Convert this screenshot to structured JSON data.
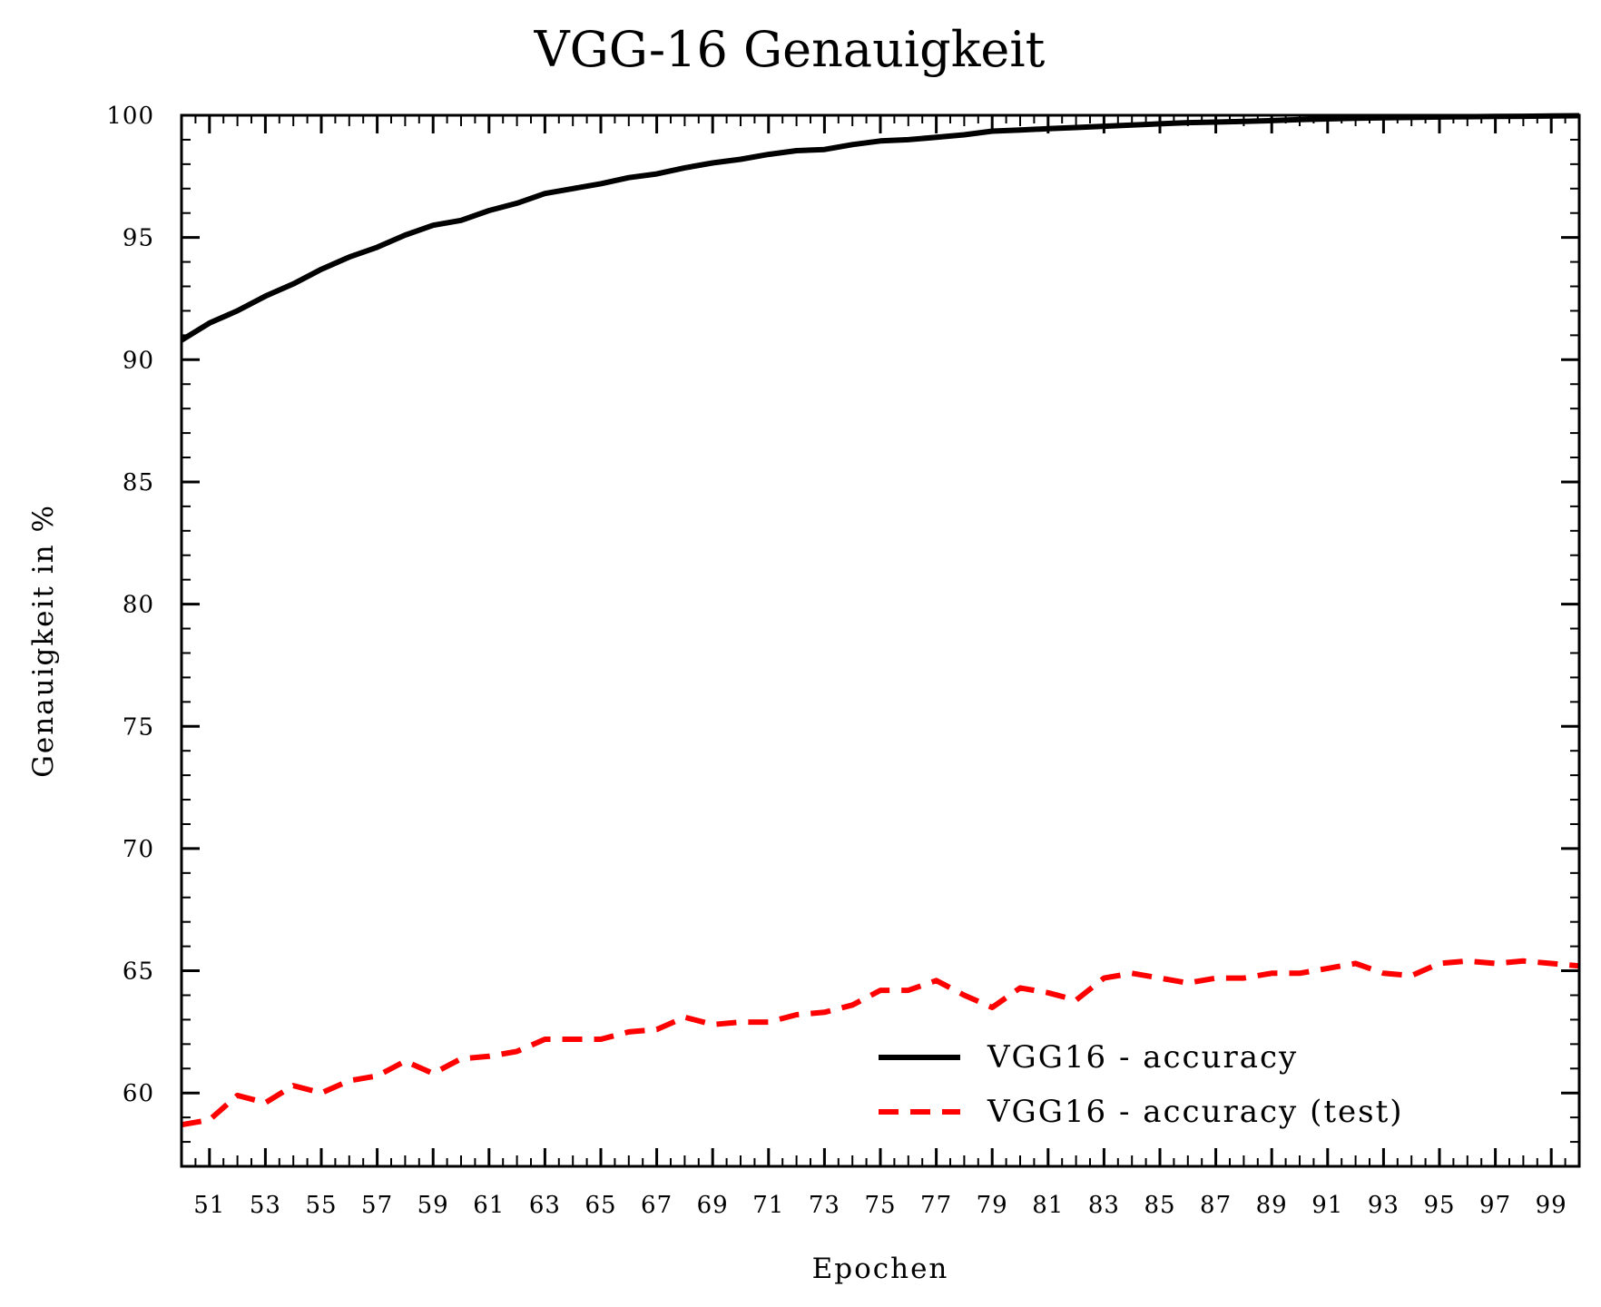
{
  "chart_data": {
    "type": "line",
    "title": "VGG-16 Genauigkeit",
    "xlabel": "Epochen",
    "ylabel": "Genauigkeit in %",
    "xlim": [
      50,
      100
    ],
    "ylim": [
      57,
      100
    ],
    "yticks": [
      60,
      65,
      70,
      75,
      80,
      85,
      90,
      95,
      100
    ],
    "xtick_labels": [
      "51",
      "53",
      "55",
      "57",
      "59",
      "61",
      "63",
      "65",
      "67",
      "69",
      "71",
      "73",
      "75",
      "77",
      "79",
      "81",
      "83",
      "85",
      "87",
      "89",
      "91",
      "93",
      "95",
      "97",
      "99"
    ],
    "legend_position": "lower-right",
    "grid": false,
    "x": [
      50,
      51,
      52,
      53,
      54,
      55,
      56,
      57,
      58,
      59,
      60,
      61,
      62,
      63,
      64,
      65,
      66,
      67,
      68,
      69,
      70,
      71,
      72,
      73,
      74,
      75,
      76,
      77,
      78,
      79,
      80,
      81,
      82,
      83,
      84,
      85,
      86,
      87,
      88,
      89,
      90,
      91,
      92,
      93,
      94,
      95,
      96,
      97,
      98,
      99,
      100
    ],
    "series": [
      {
        "name": "VGG16 - accuracy",
        "color": "#000000",
        "style": "solid",
        "values": [
          90.8,
          91.5,
          92.0,
          92.6,
          93.1,
          93.7,
          94.2,
          94.6,
          95.1,
          95.5,
          95.7,
          96.1,
          96.4,
          96.8,
          97.0,
          97.2,
          97.45,
          97.6,
          97.85,
          98.05,
          98.2,
          98.4,
          98.55,
          98.6,
          98.8,
          98.95,
          99.0,
          99.1,
          99.2,
          99.35,
          99.4,
          99.45,
          99.5,
          99.55,
          99.6,
          99.65,
          99.7,
          99.72,
          99.75,
          99.78,
          99.82,
          99.85,
          99.88,
          99.9,
          99.91,
          99.93,
          99.94,
          99.95,
          99.96,
          99.97,
          99.98
        ]
      },
      {
        "name": "VGG16 - accuracy (test)",
        "color": "#ff0000",
        "style": "dashed",
        "values": [
          58.7,
          58.9,
          59.9,
          59.6,
          60.3,
          60.0,
          60.5,
          60.7,
          61.3,
          60.8,
          61.4,
          61.5,
          61.7,
          62.2,
          62.2,
          62.2,
          62.5,
          62.6,
          63.1,
          62.8,
          62.9,
          62.9,
          63.2,
          63.3,
          63.6,
          64.2,
          64.2,
          64.6,
          64.0,
          63.5,
          64.3,
          64.1,
          63.8,
          64.7,
          64.9,
          64.7,
          64.5,
          64.7,
          64.7,
          64.9,
          64.9,
          65.1,
          65.3,
          64.9,
          64.8,
          65.3,
          65.4,
          65.3,
          65.4,
          65.3,
          65.2
        ]
      }
    ]
  }
}
